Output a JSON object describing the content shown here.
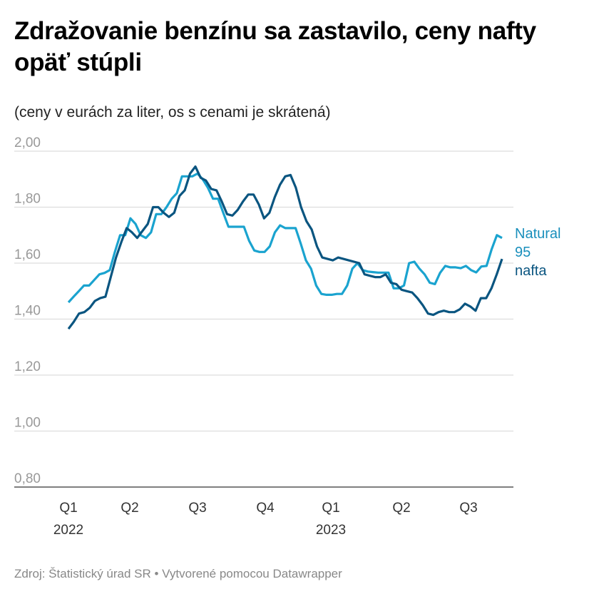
{
  "title": "Zdražovanie benzínu sa zastavilo, ceny nafty opäť stúpli",
  "subtitle": "(ceny v eurách za liter, os s cenami je skrátená)",
  "source": "Zdroj: Štatistický úrad SR • Vytvorené pomocou Datawrapper",
  "chart_data": {
    "type": "line",
    "title": "Zdražovanie benzínu sa zastavilo, ceny nafty opäť stúpli",
    "subtitle": "(ceny v eurách za liter, os s cenami je skrátená)",
    "ylim": [
      0.8,
      2.0
    ],
    "yticks": [
      "2,00",
      "1,80",
      "1,60",
      "1,40",
      "1,20",
      "1,00",
      "0,80"
    ],
    "ytick_values": [
      2.0,
      1.8,
      1.6,
      1.4,
      1.2,
      1.0,
      0.8
    ],
    "xticks": [
      {
        "label": "Q1",
        "year": "2022"
      },
      {
        "label": "Q2",
        "year": ""
      },
      {
        "label": "Q3",
        "year": ""
      },
      {
        "label": "Q4",
        "year": ""
      },
      {
        "label": "Q1",
        "year": "2023"
      },
      {
        "label": "Q2",
        "year": ""
      },
      {
        "label": "Q3",
        "year": ""
      }
    ],
    "grid": true,
    "legend": "inline-right",
    "series": [
      {
        "name": "Natural 95",
        "color": "#1aa3cf",
        "values": [
          1.46,
          1.48,
          1.5,
          1.52,
          1.52,
          1.54,
          1.56,
          1.565,
          1.575,
          1.64,
          1.7,
          1.7,
          1.76,
          1.74,
          1.7,
          1.69,
          1.71,
          1.775,
          1.775,
          1.8,
          1.83,
          1.85,
          1.91,
          1.91,
          1.91,
          1.92,
          1.9,
          1.87,
          1.83,
          1.83,
          1.78,
          1.73,
          1.73,
          1.73,
          1.73,
          1.68,
          1.645,
          1.64,
          1.64,
          1.66,
          1.71,
          1.735,
          1.725,
          1.725,
          1.725,
          1.67,
          1.61,
          1.58,
          1.52,
          1.49,
          1.487,
          1.487,
          1.49,
          1.49,
          1.52,
          1.58,
          1.6,
          1.575,
          1.57,
          1.568,
          1.566,
          1.566,
          1.566,
          1.51,
          1.51,
          1.52,
          1.6,
          1.605,
          1.58,
          1.56,
          1.53,
          1.525,
          1.565,
          1.59,
          1.585,
          1.585,
          1.582,
          1.59,
          1.575,
          1.567,
          1.588,
          1.59,
          1.65,
          1.7,
          1.69
        ]
      },
      {
        "name": "nafta",
        "color": "#0a5580",
        "values": [
          1.365,
          1.39,
          1.42,
          1.425,
          1.44,
          1.465,
          1.475,
          1.48,
          1.55,
          1.62,
          1.675,
          1.725,
          1.71,
          1.69,
          1.715,
          1.74,
          1.8,
          1.8,
          1.78,
          1.765,
          1.78,
          1.84,
          1.86,
          1.92,
          1.945,
          1.905,
          1.895,
          1.865,
          1.86,
          1.82,
          1.775,
          1.77,
          1.79,
          1.82,
          1.845,
          1.845,
          1.81,
          1.76,
          1.78,
          1.835,
          1.88,
          1.91,
          1.915,
          1.87,
          1.8,
          1.75,
          1.72,
          1.66,
          1.62,
          1.615,
          1.61,
          1.62,
          1.615,
          1.61,
          1.605,
          1.6,
          1.56,
          1.555,
          1.55,
          1.55,
          1.56,
          1.53,
          1.525,
          1.505,
          1.5,
          1.495,
          1.475,
          1.45,
          1.42,
          1.415,
          1.425,
          1.43,
          1.425,
          1.425,
          1.435,
          1.455,
          1.445,
          1.43,
          1.475,
          1.475,
          1.51,
          1.56,
          1.615
        ]
      }
    ],
    "labels": {
      "natural_line1": "Natural",
      "natural_line2": "95",
      "nafta": "nafta"
    }
  }
}
